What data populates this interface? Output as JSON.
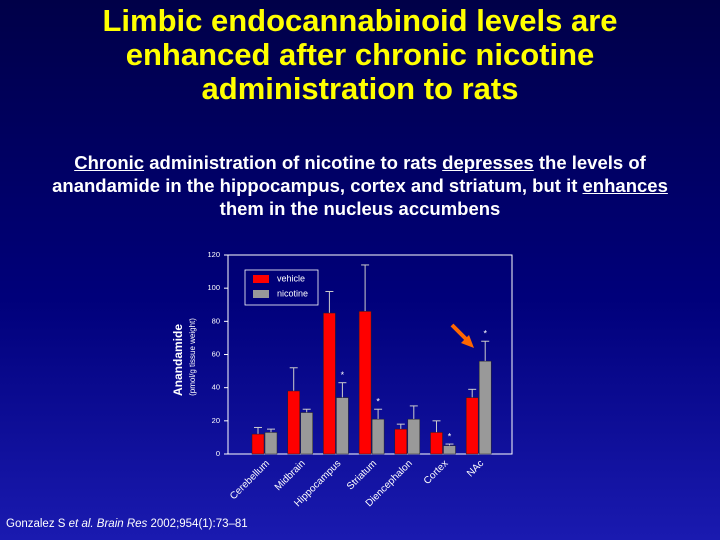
{
  "slide": {
    "title": "Limbic endocannabinoid levels are enhanced after chronic nicotine administration to rats",
    "subtitle": [
      {
        "text": "Chronic",
        "underline": true
      },
      {
        "text": " administration of nicotine to rats "
      },
      {
        "text": "depresses",
        "underline": true
      },
      {
        "text": " the levels of anandamide in the hippocampus, cortex and striatum, but it "
      },
      {
        "text": "enhances",
        "underline": true
      },
      {
        "text": " them in the nucleus accumbens"
      }
    ],
    "citation": [
      {
        "text": "Gonzalez S "
      },
      {
        "text": "et al.",
        "italic": true
      },
      {
        "text": " "
      },
      {
        "text": "Brain Res",
        "italic": true
      },
      {
        "text": " 2002;954(1):73–81"
      }
    ]
  },
  "chart_data": {
    "type": "bar",
    "ylabel": "Anandamide",
    "ylabel_sub": "(pmol/g tissue weight)",
    "categories": [
      "Cerebellum",
      "Midbrain",
      "Hippocampus",
      "Striatum",
      "Diencephalon",
      "Cortex",
      "NAc"
    ],
    "series": [
      {
        "name": "vehicle",
        "color": "#ff0000",
        "values": [
          12,
          38,
          85,
          86,
          15,
          13,
          34
        ],
        "errors": [
          4,
          14,
          13,
          28,
          3,
          7,
          5
        ]
      },
      {
        "name": "nicotine",
        "color": "#999999",
        "values": [
          13,
          25,
          34,
          21,
          21,
          5,
          56
        ],
        "errors": [
          2,
          2,
          9,
          6,
          8,
          1,
          12
        ],
        "significance": [
          null,
          null,
          "*",
          "*",
          null,
          "*",
          "*"
        ]
      }
    ],
    "ylim": [
      0,
      120
    ],
    "yticks": [
      0,
      20,
      40,
      60,
      80,
      100,
      120
    ],
    "legend": "top-left"
  }
}
